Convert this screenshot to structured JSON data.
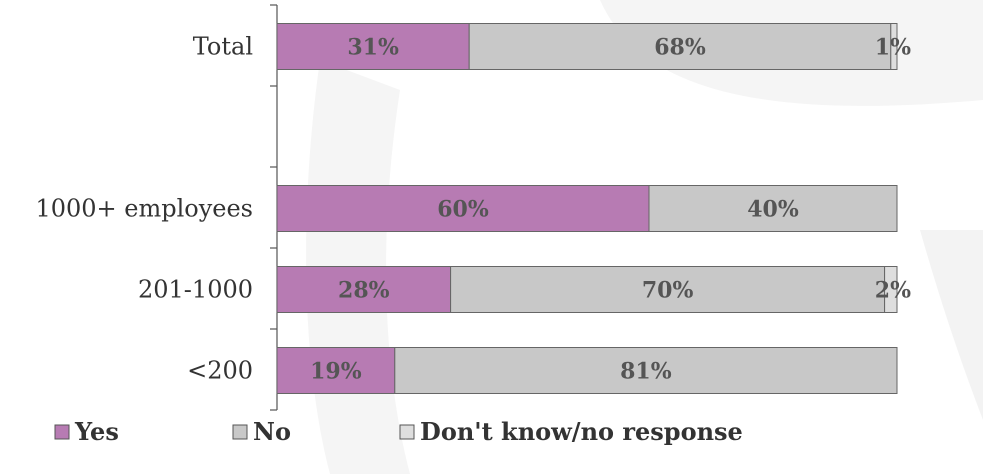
{
  "chart_data": {
    "type": "bar",
    "orientation": "horizontal",
    "stacked": true,
    "categories": [
      "Total",
      "",
      "1000+ employees",
      "201-1000",
      "<200"
    ],
    "series": [
      {
        "name": "Yes",
        "values": [
          31,
          null,
          60,
          28,
          19
        ],
        "color": "#b77bb3"
      },
      {
        "name": "No",
        "values": [
          68,
          null,
          40,
          70,
          81
        ],
        "color": "#c8c8c8"
      },
      {
        "name": "Don't know/no response",
        "values": [
          1,
          null,
          0,
          2,
          0
        ],
        "color": "#dedede"
      }
    ],
    "data_labels": [
      [
        "31%",
        "68%",
        "1%"
      ],
      null,
      [
        "60%",
        "40%",
        ""
      ],
      [
        "28%",
        "70%",
        "2%"
      ],
      [
        "19%",
        "81%",
        ""
      ]
    ],
    "xlim": [
      0,
      100
    ],
    "grid": false,
    "legend_position": "bottom",
    "title": "",
    "xlabel": "",
    "ylabel": ""
  },
  "legend": {
    "items": [
      "Yes",
      "No",
      "Don't know/no response"
    ]
  }
}
